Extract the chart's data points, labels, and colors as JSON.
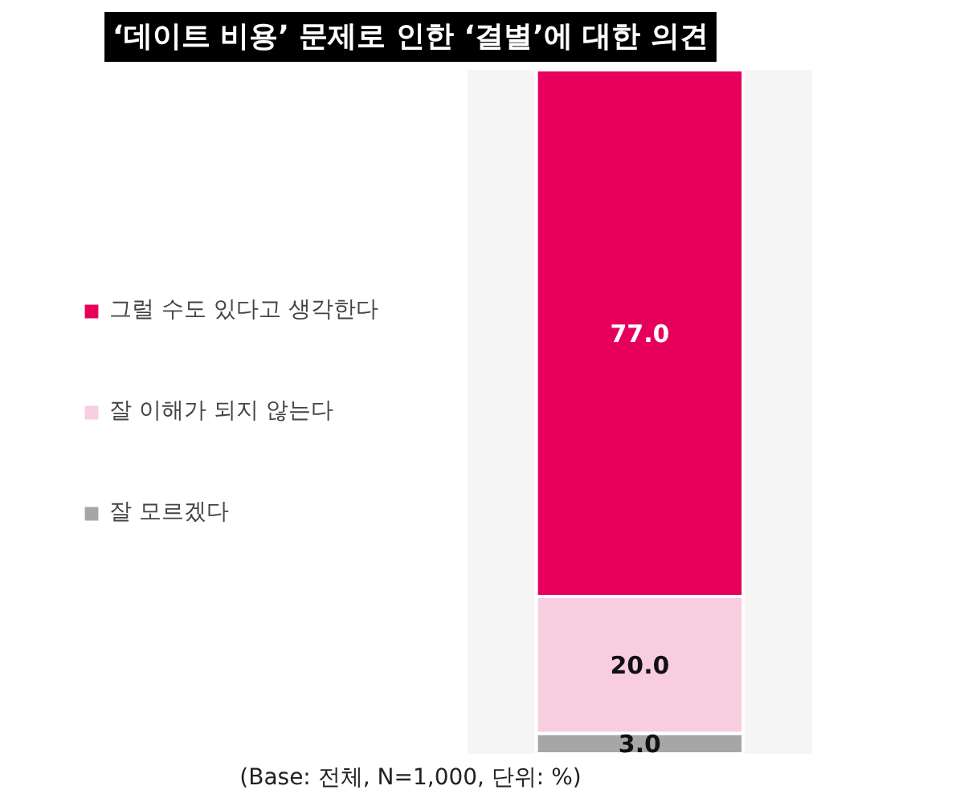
{
  "chart_data": {
    "type": "bar",
    "stacked": true,
    "title": "‘데이트 비용’ 문제로 인한 ‘결별’에 대한 의견",
    "categories": [
      null
    ],
    "series": [
      {
        "name": "잘 모르겠다",
        "color": "#a6a6a6",
        "values": [
          3.0
        ],
        "value_labels": [
          "3.0"
        ]
      },
      {
        "name": "잘 이해가 되지 않는다",
        "color": "#f9cde0",
        "values": [
          20.0
        ],
        "value_labels": [
          "20.0"
        ]
      },
      {
        "name": "그럴 수도 있다고 생각한다",
        "color": "#e6005c",
        "values": [
          77.0
        ],
        "value_labels": [
          "77.0"
        ]
      }
    ],
    "legend": "left",
    "annotations": [
      "(Base: 전체, N=1,000, 단위: %)"
    ]
  }
}
